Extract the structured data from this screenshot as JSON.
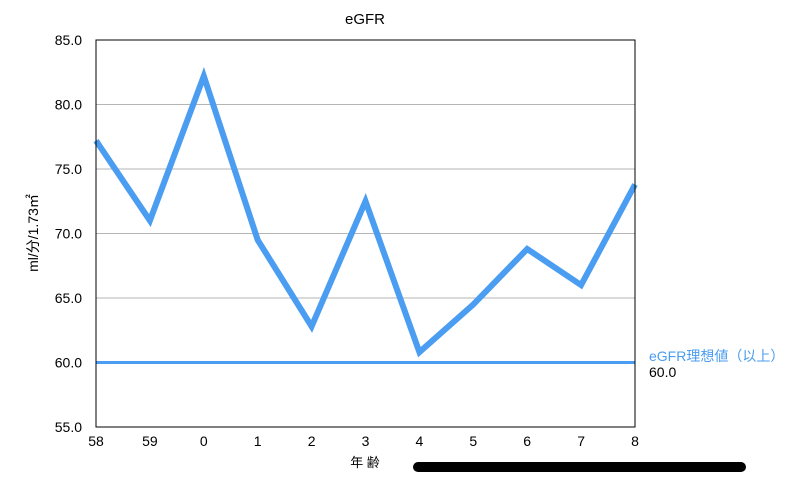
{
  "chart_data": {
    "type": "line",
    "title": "eGFR",
    "xlabel": "年 齢",
    "ylabel": "ml/分/1.73㎡",
    "categories": [
      "58",
      "59",
      "0",
      "1",
      "2",
      "3",
      "4",
      "5",
      "6",
      "7",
      "8"
    ],
    "series": [
      {
        "values": [
          77.2,
          71.0,
          82.2,
          69.5,
          62.8,
          72.5,
          60.8,
          64.5,
          68.8,
          66.0,
          73.8
        ],
        "color": "#4a9df0"
      }
    ],
    "reference_line": {
      "name": "eGFR理想値（以上）",
      "value": 60.0,
      "value_label": "60.0",
      "color": "#4a9df0"
    },
    "ylim": [
      55.0,
      85.0
    ],
    "yticks": [
      "55.0",
      "60.0",
      "65.0",
      "70.0",
      "75.0",
      "80.0",
      "85.0"
    ],
    "grid": true,
    "legend": "right"
  }
}
